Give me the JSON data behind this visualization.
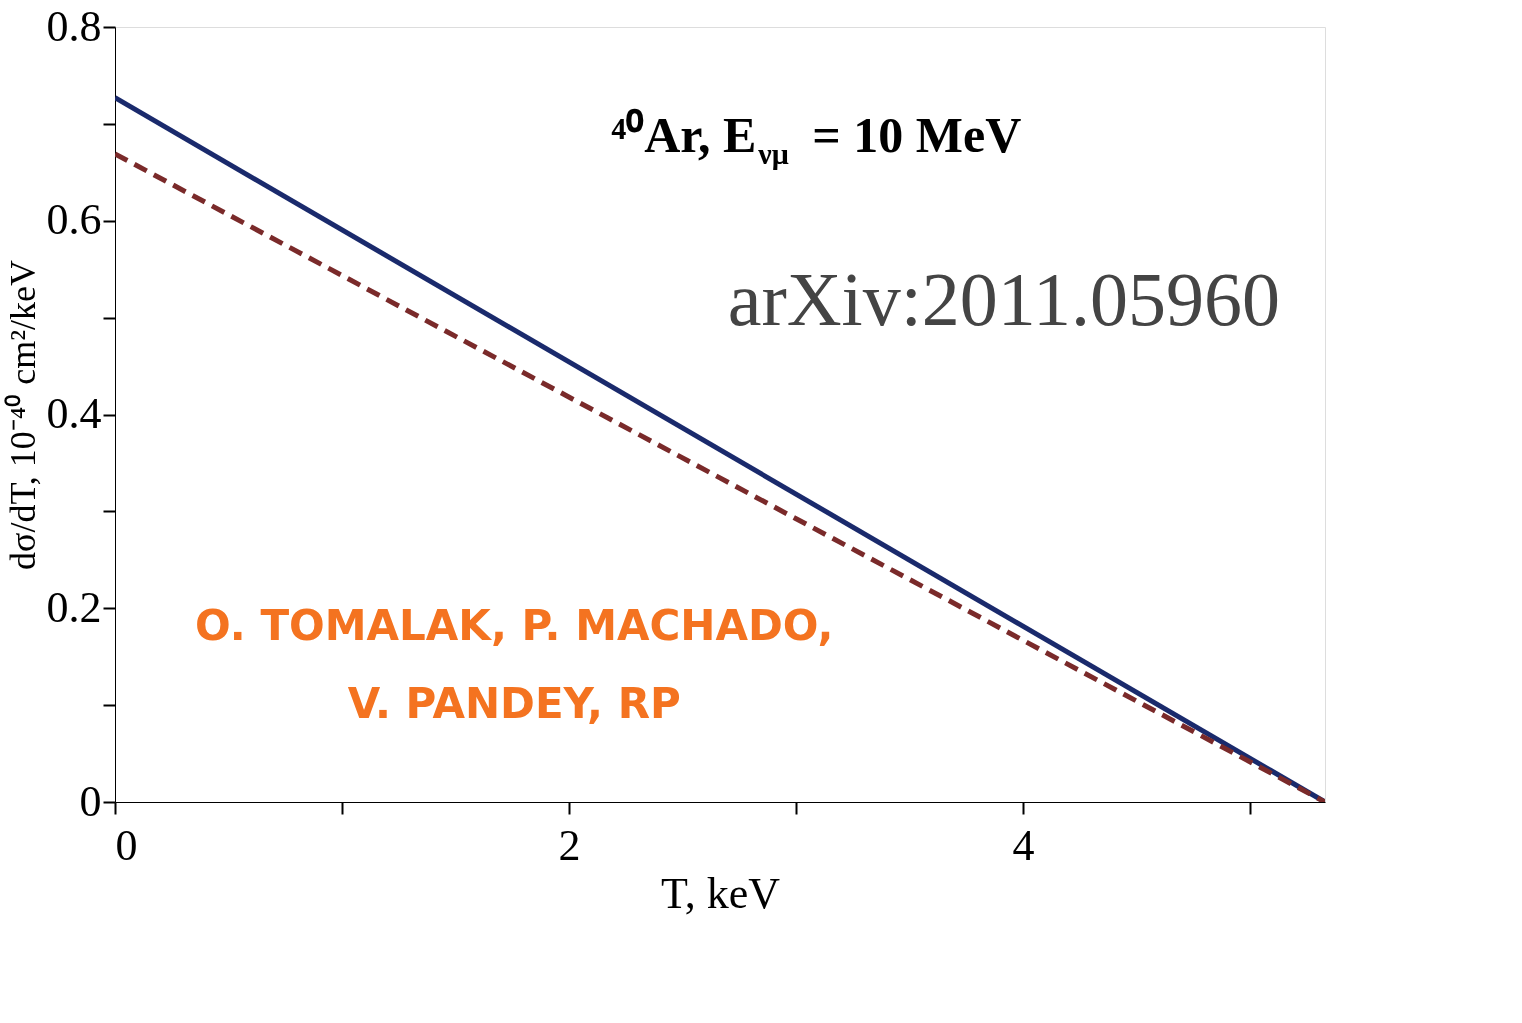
{
  "chart_data": {
    "type": "line",
    "title": "⁴⁰Ar, E$_{νμ}$ = 10 MeV",
    "xlabel": "T, keV",
    "ylabel": "dσ/dT, 10⁻⁴⁰ cm²/keV",
    "xlim": [
      0,
      5.33
    ],
    "ylim": [
      0,
      0.8
    ],
    "xticks": [
      0,
      {
        "value": 1,
        "label": null
      },
      2,
      {
        "value": 3,
        "label": null
      },
      4,
      {
        "value": 5,
        "label": null
      }
    ],
    "yticks": [
      0,
      {
        "value": 0.1,
        "label": null
      },
      0.2,
      {
        "value": 0.3,
        "label": null
      },
      0.4,
      {
        "value": 0.5,
        "label": null
      },
      0.6,
      {
        "value": 0.7,
        "label": null
      },
      0.8
    ],
    "grid": false,
    "x": [
      0,
      5.33
    ],
    "series": [
      {
        "color": "#1a2a6c",
        "line_style": "solid",
        "values": [
          0.727,
          0
        ]
      },
      {
        "color": "#7a2a2a",
        "line_style": "dashed",
        "values": [
          0.669,
          0
        ]
      }
    ],
    "annotations": [
      "arXiv:2011.05960",
      "O. TOMALAK, P. MACHADO, V. PANDEY, RP"
    ]
  }
}
